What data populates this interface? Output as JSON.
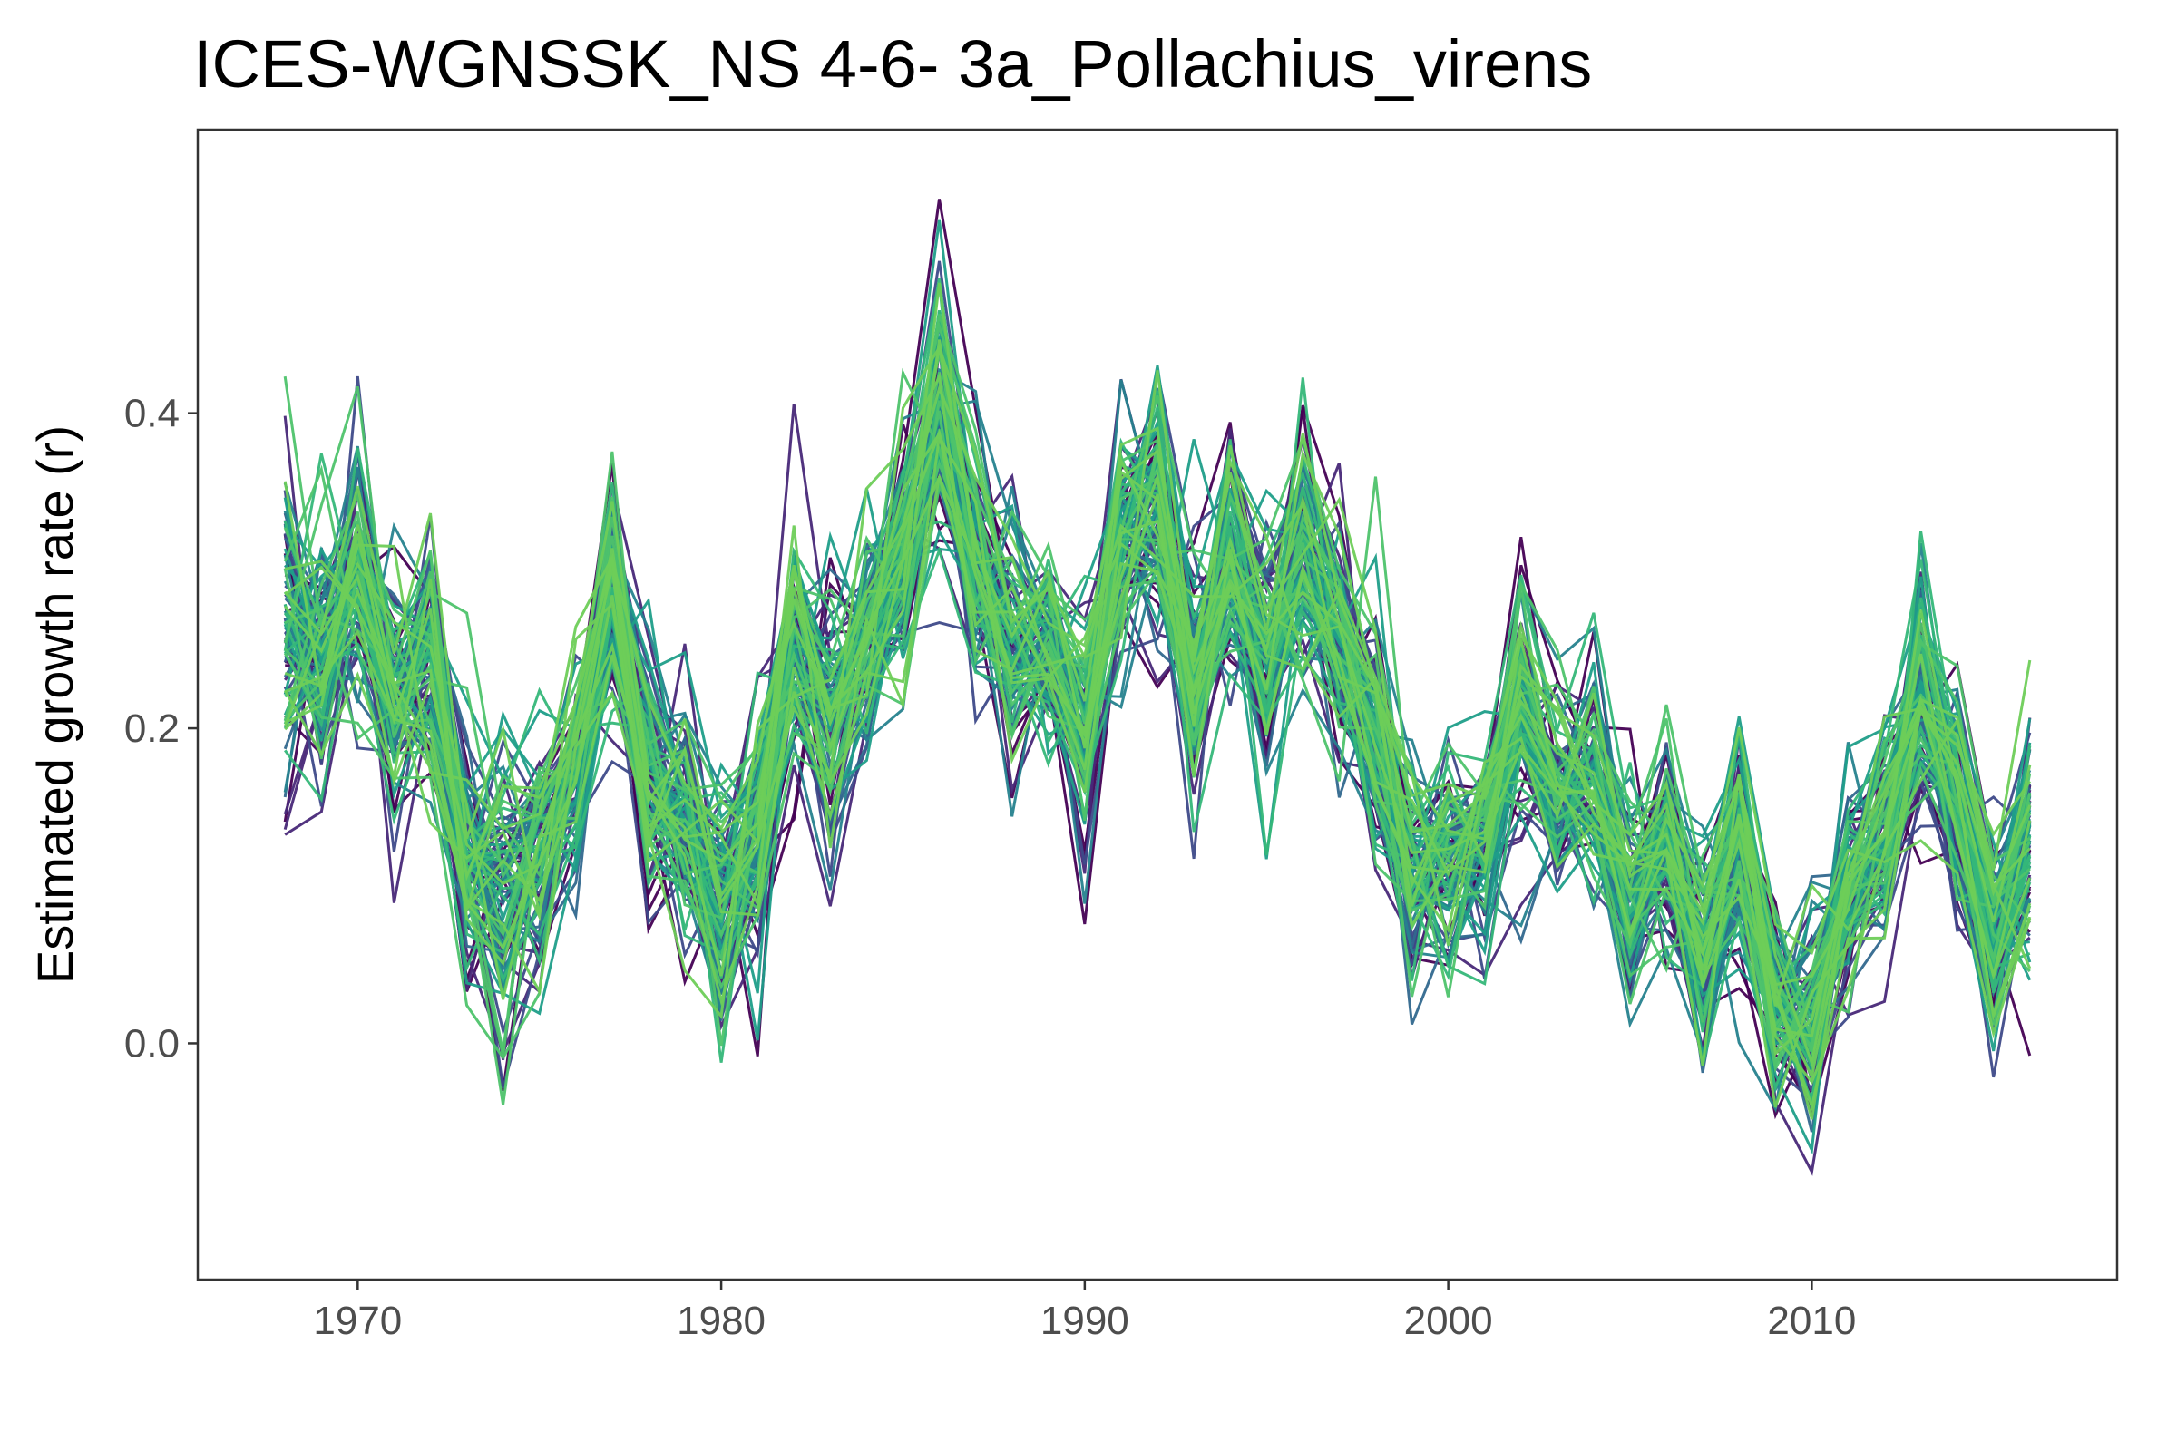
{
  "chart_data": {
    "type": "line",
    "title": "ICES-WGNSSK_NS 4-6- 3a_Pollachius_virens",
    "xlabel": "",
    "ylabel": "Estimated growth rate (r)",
    "xlim": [
      1965.6,
      2018.4
    ],
    "ylim": [
      -0.15,
      0.58
    ],
    "x_ticks": [
      1970,
      1980,
      1990,
      2000,
      2010
    ],
    "y_ticks": [
      0.0,
      0.2,
      0.4
    ],
    "x_tick_labels": [
      "1970",
      "1980",
      "1990",
      "2000",
      "2010"
    ],
    "y_tick_labels": [
      "0.0",
      "0.2",
      "0.4"
    ],
    "grid": false,
    "legend": "none",
    "colormap": [
      "#440154",
      "#482878",
      "#3e4a89",
      "#31688e",
      "#26828e",
      "#1f9e89",
      "#35b779",
      "#4ec36b",
      "#6ece58"
    ],
    "ensemble_members": 100,
    "x": [
      1968,
      1969,
      1970,
      1971,
      1972,
      1973,
      1974,
      1975,
      1976,
      1977,
      1978,
      1979,
      1980,
      1981,
      1982,
      1983,
      1984,
      1985,
      1986,
      1987,
      1988,
      1989,
      1990,
      1991,
      1992,
      1993,
      1994,
      1995,
      1996,
      1997,
      1998,
      1999,
      2000,
      2001,
      2002,
      2003,
      2004,
      2005,
      2006,
      2007,
      2008,
      2009,
      2010,
      2011,
      2012,
      2013,
      2014,
      2015,
      2016
    ],
    "series": [
      {
        "values": [
          0.26,
          0.25,
          0.29,
          0.22,
          0.24,
          0.11,
          0.09,
          0.12,
          0.17,
          0.28,
          0.16,
          0.14,
          0.09,
          0.12,
          0.25,
          0.2,
          0.25,
          0.31,
          0.4,
          0.31,
          0.25,
          0.25,
          0.2,
          0.32,
          0.34,
          0.23,
          0.31,
          0.25,
          0.32,
          0.25,
          0.2,
          0.11,
          0.12,
          0.13,
          0.21,
          0.16,
          0.17,
          0.09,
          0.13,
          0.05,
          0.12,
          0.02,
          0.01,
          0.09,
          0.13,
          0.21,
          0.15,
          0.07,
          0.12
        ],
        "spread": [
          0.07,
          0.06,
          0.06,
          0.06,
          0.06,
          0.06,
          0.07,
          0.06,
          0.05,
          0.06,
          0.06,
          0.06,
          0.06,
          0.06,
          0.06,
          0.06,
          0.05,
          0.06,
          0.07,
          0.06,
          0.06,
          0.05,
          0.06,
          0.06,
          0.06,
          0.06,
          0.06,
          0.06,
          0.06,
          0.06,
          0.05,
          0.05,
          0.05,
          0.05,
          0.06,
          0.05,
          0.05,
          0.05,
          0.05,
          0.05,
          0.06,
          0.05,
          0.06,
          0.05,
          0.05,
          0.06,
          0.05,
          0.05,
          0.06
        ]
      }
    ]
  }
}
